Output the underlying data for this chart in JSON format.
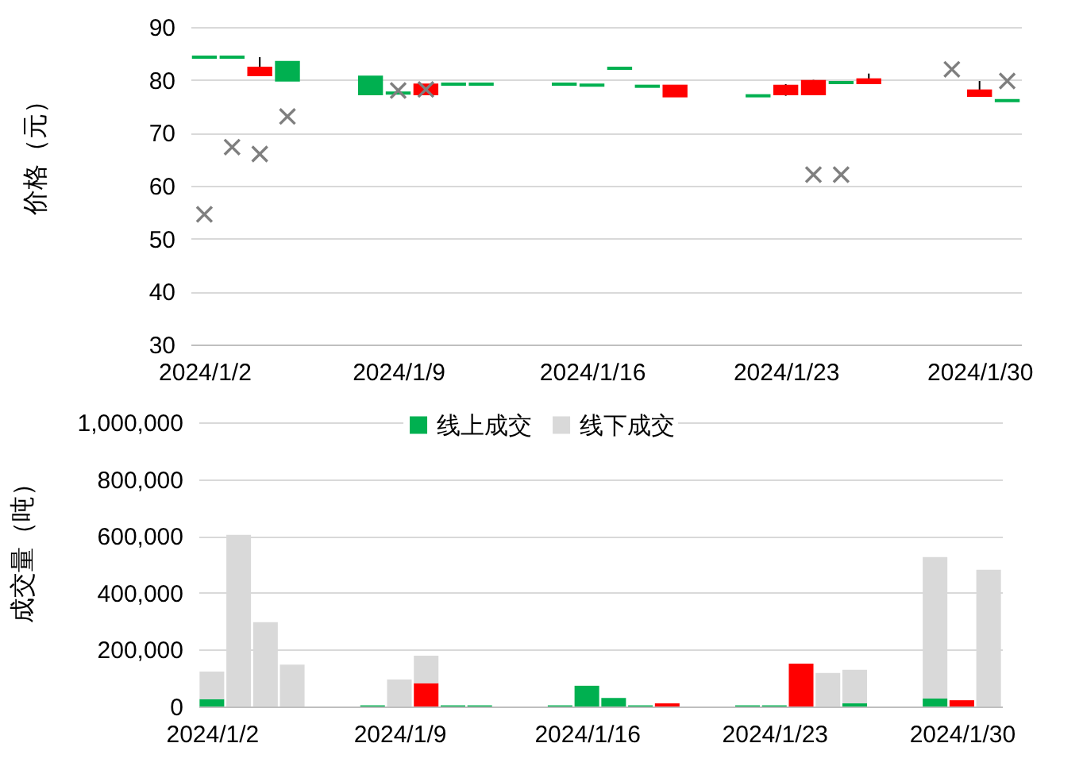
{
  "chart_data": [
    {
      "type": "candlestick",
      "ylabel": "价格（元）",
      "x": [
        "2024-01-02",
        "2024-01-03",
        "2024-01-04",
        "2024-01-05",
        "2024-01-08",
        "2024-01-09",
        "2024-01-10",
        "2024-01-11",
        "2024-01-12",
        "2024-01-15",
        "2024-01-16",
        "2024-01-17",
        "2024-01-18",
        "2024-01-19",
        "2024-01-22",
        "2024-01-23",
        "2024-01-24",
        "2024-01-25",
        "2024-01-26",
        "2024-01-30",
        "2024-01-31"
      ],
      "ohlc": [
        [
          84.3,
          84.3,
          84.3,
          84.3
        ],
        [
          84.3,
          84.3,
          84.3,
          84.3
        ],
        [
          81.0,
          84.3,
          81.0,
          82.2
        ],
        [
          83.3,
          83.3,
          80.0,
          80.0
        ],
        [
          80.5,
          80.5,
          77.4,
          77.4
        ],
        [
          77.5,
          77.5,
          77.5,
          77.5
        ],
        [
          77.4,
          79.0,
          77.4,
          79.0
        ],
        [
          79.2,
          79.2,
          79.2,
          79.2
        ],
        [
          79.2,
          79.2,
          79.2,
          79.2
        ],
        [
          79.2,
          79.2,
          79.2,
          79.2
        ],
        [
          79.0,
          79.0,
          79.0,
          79.0
        ],
        [
          82.2,
          82.2,
          82.2,
          82.2
        ],
        [
          78.8,
          78.8,
          78.8,
          78.8
        ],
        [
          77.0,
          78.8,
          77.0,
          78.8
        ],
        [
          77.0,
          77.0,
          77.0,
          77.0
        ],
        [
          77.4,
          79.2,
          77.0,
          78.8
        ],
        [
          77.4,
          80.0,
          77.4,
          79.7
        ],
        [
          79.5,
          79.5,
          79.5,
          79.5
        ],
        [
          79.5,
          81.2,
          79.5,
          80.0
        ],
        [
          77.1,
          79.8,
          77.1,
          77.9
        ],
        [
          76.1,
          76.1,
          76.1,
          76.1
        ]
      ],
      "colors": [
        "#00b050",
        "#00b050",
        "#ff0000",
        "#00b050",
        "#00b050",
        "#00b050",
        "#ff0000",
        "#00b050",
        "#00b050",
        "#00b050",
        "#00b050",
        "#00b050",
        "#00b050",
        "#ff0000",
        "#00b050",
        "#ff0000",
        "#ff0000",
        "#00b050",
        "#ff0000",
        "#ff0000",
        "#00b050"
      ],
      "series": [
        {
          "type": "scatter",
          "x": [
            "2024-01-02",
            "2024-01-03",
            "2024-01-04",
            "2024-01-05",
            "2024-01-09",
            "2024-01-10",
            "2024-01-24",
            "2024-01-25",
            "2024-01-29",
            "2024-01-31"
          ],
          "values": [
            54.6,
            67.3,
            66.0,
            73.1,
            78.0,
            78.2,
            62.1,
            62.1,
            82.0,
            79.8
          ],
          "color": "#7f7f7f",
          "marker": "cross"
        }
      ],
      "xlim": [
        "2024-01-01T12:00",
        "2024-01-31T12:00"
      ],
      "xticks": [
        {
          "value": "2024-01-02",
          "label": "2024/1/2"
        },
        {
          "value": "2024-01-09",
          "label": "2024/1/9"
        },
        {
          "value": "2024-01-16",
          "label": "2024/1/16"
        },
        {
          "value": "2024-01-23",
          "label": "2024/1/23"
        },
        {
          "value": "2024-01-30",
          "label": "2024/1/30"
        }
      ],
      "ylim": [
        30,
        90
      ],
      "yticks": [
        30,
        40,
        50,
        60,
        70,
        80,
        90
      ],
      "grid": "y"
    },
    {
      "type": "bar",
      "stacked": true,
      "ylabel": "成交量（吨）",
      "x": [
        "2024-01-02",
        "2024-01-03",
        "2024-01-04",
        "2024-01-05",
        "2024-01-08",
        "2024-01-09",
        "2024-01-10",
        "2024-01-11",
        "2024-01-12",
        "2024-01-15",
        "2024-01-16",
        "2024-01-17",
        "2024-01-18",
        "2024-01-19",
        "2024-01-22",
        "2024-01-23",
        "2024-01-24",
        "2024-01-25",
        "2024-01-26",
        "2024-01-29",
        "2024-01-30",
        "2024-01-31"
      ],
      "series": [
        {
          "name": "线上成交",
          "color": "#00b050",
          "colors": [
            "#00b050",
            "#00b050",
            "#00b050",
            "#00b050",
            "#00b050",
            "#00b050",
            "#ff0000",
            "#00b050",
            "#00b050",
            "#00b050",
            "#00b050",
            "#00b050",
            "#00b050",
            "#ff0000",
            "#00b050",
            "#00b050",
            "#ff0000",
            "#00b050",
            "#00b050",
            "#00b050",
            "#ff0000",
            "#00b050"
          ],
          "values": [
            26000,
            null,
            null,
            null,
            4000,
            null,
            82000,
            4000,
            4000,
            4000,
            73000,
            30000,
            4000,
            11000,
            4000,
            4000,
            151000,
            null,
            11000,
            28000,
            22000,
            null
          ]
        },
        {
          "name": "线下成交",
          "color": "#d9d9d9",
          "values": [
            97000,
            604000,
            297000,
            147000,
            null,
            95000,
            97000,
            null,
            null,
            null,
            null,
            null,
            null,
            null,
            null,
            null,
            null,
            118000,
            118000,
            498000,
            null,
            481000
          ]
        }
      ],
      "xlim": [
        "2024-01-01T12:00",
        "2024-01-31T12:00"
      ],
      "xticks": [
        {
          "value": "2024-01-02",
          "label": "2024/1/2"
        },
        {
          "value": "2024-01-09",
          "label": "2024/1/9"
        },
        {
          "value": "2024-01-16",
          "label": "2024/1/16"
        },
        {
          "value": "2024-01-23",
          "label": "2024/1/23"
        },
        {
          "value": "2024-01-30",
          "label": "2024/1/30"
        }
      ],
      "ylim": [
        0,
        1000000
      ],
      "yticks": [
        0,
        {
          "value": 200000,
          "label": "200,000"
        },
        {
          "value": 400000,
          "label": "400,000"
        },
        {
          "value": 600000,
          "label": "600,000"
        },
        {
          "value": 800000,
          "label": "800,000"
        },
        {
          "value": 1000000,
          "label": "1,000,000"
        }
      ],
      "grid": "y",
      "legend": "top"
    }
  ]
}
